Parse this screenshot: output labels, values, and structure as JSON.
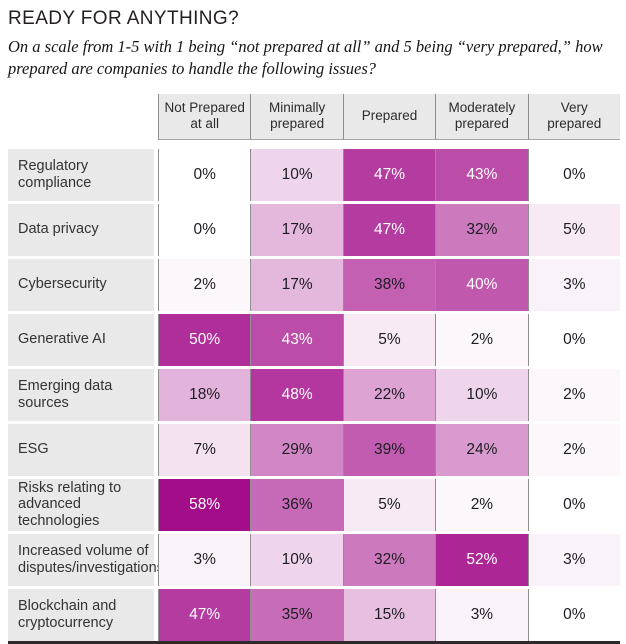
{
  "title": "READY FOR ANYTHING?",
  "subtitle": "On a scale from 1-5 with 1 being “not prepared at all” and 5 being “very prepared,” how prepared are companies to handle the following issues?",
  "chart_data": {
    "type": "heatmap",
    "unit": "%",
    "columns": [
      "Not Prepared at all",
      "Minimally prepared",
      "Prepared",
      "Moderately prepared",
      "Very prepared"
    ],
    "rows": [
      {
        "label": "Regulatory compliance",
        "values": [
          0,
          10,
          47,
          43,
          0
        ]
      },
      {
        "label": "Data privacy",
        "values": [
          0,
          17,
          47,
          32,
          5
        ]
      },
      {
        "label": "Cybersecurity",
        "values": [
          2,
          17,
          38,
          40,
          3
        ]
      },
      {
        "label": "Generative AI",
        "values": [
          50,
          43,
          5,
          2,
          0
        ]
      },
      {
        "label": "Emerging data sources",
        "values": [
          18,
          48,
          22,
          10,
          2
        ]
      },
      {
        "label": "ESG",
        "values": [
          7,
          29,
          39,
          24,
          2
        ]
      },
      {
        "label": "Risks relating to advanced technologies",
        "values": [
          58,
          36,
          5,
          2,
          0
        ]
      },
      {
        "label": "Increased volume of disputes/investigations",
        "values": [
          3,
          10,
          32,
          52,
          3
        ]
      },
      {
        "label": "Blockchain and cryptocurrency",
        "values": [
          47,
          35,
          15,
          3,
          0
        ]
      }
    ],
    "layout_hints": {
      "legend": "none",
      "grid": "thin gray column separators, white row gaps, dark bottom rule"
    },
    "colors": {
      "heat_min": "#ffffff",
      "heat_max": "#a30d8a",
      "max_value": 58,
      "white_text_threshold": 40,
      "header_bg": "#e9e9e9",
      "label_bg": "#e9e9e9",
      "grid_line": "#8f8f8f",
      "bottom_border": "#2e2a2b",
      "dark_text": "#1c1c22",
      "light_text": "#ffffff"
    }
  }
}
